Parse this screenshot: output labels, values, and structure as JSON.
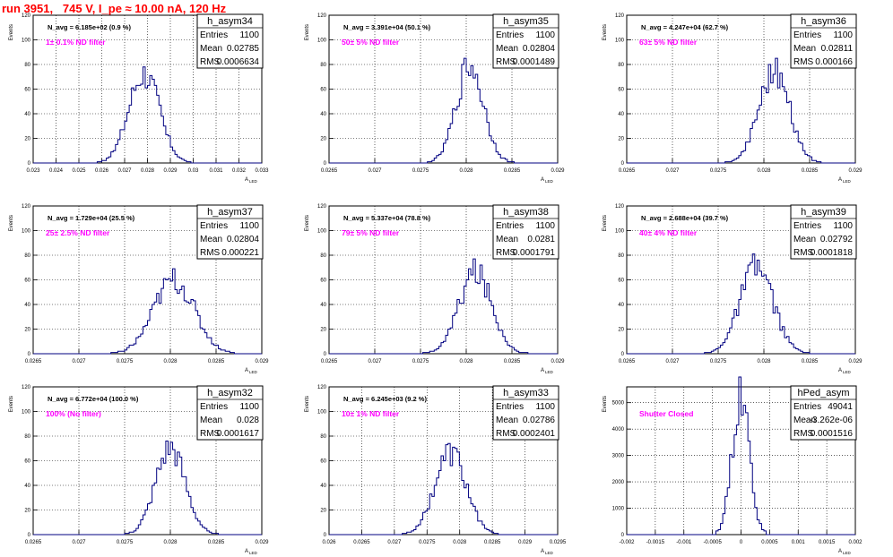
{
  "title": "run 3951,   745 V, I_pe ≈ 10.00 nA, 120 Hz",
  "colors": {
    "line": "#000080",
    "filter_label": "#ff00ff",
    "title": "#ff0000",
    "grid": "#000000"
  },
  "y_axis_label": "Events",
  "x_axis_label": "A",
  "x_axis_sub": "LED",
  "stats_labels": {
    "entries": "Entries",
    "mean": "Mean",
    "rms": "RMS"
  },
  "panels": [
    {
      "name": "h_asym34",
      "navg": "N_avg = 6.185e+02 (0.9 %)",
      "filter": "1± 0.1% ND filter",
      "entries": "1100",
      "mean": "0.02785",
      "rms": "0.0006634",
      "xticks": [
        "0.023",
        "0.024",
        "0.025",
        "0.026",
        "0.027",
        "0.028",
        "0.029",
        "0.03",
        "0.031",
        "0.032",
        "0.033"
      ],
      "yticks": [
        "0",
        "20",
        "40",
        "60",
        "80",
        "100",
        "120"
      ],
      "chart_data": {
        "type": "histogram",
        "xlim": [
          0.023,
          0.033
        ],
        "ylim": [
          0,
          120
        ],
        "mean": 0.02785,
        "rms": 0.0006634,
        "peak": 73,
        "entries": 1100
      }
    },
    {
      "name": "h_asym35",
      "navg": "N_avg = 3.391e+04 (50.1 %)",
      "filter": "50± 5% ND filter",
      "entries": "1100",
      "mean": "0.02804",
      "rms": "0.0001489",
      "xticks": [
        "0.0265",
        "0.027",
        "0.0275",
        "0.028",
        "0.0285",
        "0.029"
      ],
      "yticks": [
        "0",
        "20",
        "40",
        "60",
        "80",
        "100",
        "120"
      ],
      "chart_data": {
        "type": "histogram",
        "xlim": [
          0.0265,
          0.029
        ],
        "ylim": [
          0,
          120
        ],
        "mean": 0.02804,
        "rms": 0.0001489,
        "peak": 80,
        "entries": 1100
      }
    },
    {
      "name": "h_asym36",
      "navg": "N_avg = 4.247e+04 (62.7 %)",
      "filter": "63± 5% ND filter",
      "entries": "1100",
      "mean": "0.02811",
      "rms": "0.000166",
      "xticks": [
        "0.0265",
        "0.027",
        "0.0275",
        "0.028",
        "0.0285",
        "0.029"
      ],
      "yticks": [
        "0",
        "20",
        "40",
        "60",
        "80",
        "100",
        "120"
      ],
      "chart_data": {
        "type": "histogram",
        "xlim": [
          0.0265,
          0.029
        ],
        "ylim": [
          0,
          120
        ],
        "mean": 0.02811,
        "rms": 0.000166,
        "peak": 75,
        "entries": 1100
      }
    },
    {
      "name": "h_asym37",
      "navg": "N_avg = 1.729e+04 (25.5 %)",
      "filter": "25± 2.5% ND filter",
      "entries": "1100",
      "mean": "0.02804",
      "rms": "0.000221",
      "xticks": [
        "0.0265",
        "0.027",
        "0.0275",
        "0.028",
        "0.0285",
        "0.029"
      ],
      "yticks": [
        "0",
        "20",
        "40",
        "60",
        "80",
        "100",
        "120"
      ],
      "chart_data": {
        "type": "histogram",
        "xlim": [
          0.0265,
          0.029
        ],
        "ylim": [
          0,
          120
        ],
        "mean": 0.02804,
        "rms": 0.000221,
        "peak": 60,
        "entries": 1100
      }
    },
    {
      "name": "h_asym38",
      "navg": "N_avg = 5.337e+04 (78.8 %)",
      "filter": "79± 5% ND filter",
      "entries": "1100",
      "mean": "0.0281",
      "rms": "0.0001791",
      "xticks": [
        "0.0265",
        "0.027",
        "0.0275",
        "0.028",
        "0.0285",
        "0.029"
      ],
      "yticks": [
        "0",
        "20",
        "40",
        "60",
        "80",
        "100",
        "120"
      ],
      "chart_data": {
        "type": "histogram",
        "xlim": [
          0.0265,
          0.029
        ],
        "ylim": [
          0,
          120
        ],
        "mean": 0.0281,
        "rms": 0.0001791,
        "peak": 66,
        "entries": 1100
      }
    },
    {
      "name": "h_asym39",
      "navg": "N_avg = 2.688e+04 (39.7 %)",
      "filter": "40± 4% ND filter",
      "entries": "1100",
      "mean": "0.02792",
      "rms": "0.0001818",
      "xticks": [
        "0.0265",
        "0.027",
        "0.0275",
        "0.028",
        "0.0285",
        "0.029"
      ],
      "yticks": [
        "0",
        "20",
        "40",
        "60",
        "80",
        "100",
        "120"
      ],
      "chart_data": {
        "type": "histogram",
        "xlim": [
          0.0265,
          0.029
        ],
        "ylim": [
          0,
          120
        ],
        "mean": 0.02792,
        "rms": 0.0001818,
        "peak": 70,
        "entries": 1100
      }
    },
    {
      "name": "h_asym32",
      "navg": "N_avg = 6.772e+04 (100.0 %)",
      "filter": "100% (No filter)",
      "entries": "1100",
      "mean": "0.028",
      "rms": "0.0001617",
      "xticks": [
        "0.0265",
        "0.027",
        "0.0275",
        "0.028",
        "0.0285",
        "0.029"
      ],
      "yticks": [
        "0",
        "20",
        "40",
        "60",
        "80",
        "100",
        "120"
      ],
      "chart_data": {
        "type": "histogram",
        "xlim": [
          0.0265,
          0.029
        ],
        "ylim": [
          0,
          120
        ],
        "mean": 0.028,
        "rms": 0.0001617,
        "peak": 70,
        "entries": 1100
      }
    },
    {
      "name": "h_asym33",
      "navg": "N_avg = 6.245e+03 (9.2 %)",
      "filter": "10± 1% ND filter",
      "entries": "1100",
      "mean": "0.02786",
      "rms": "0.0002401",
      "xticks": [
        "0.026",
        "0.0265",
        "0.027",
        "0.0275",
        "0.028",
        "0.0285",
        "0.029",
        "0.0295"
      ],
      "yticks": [
        "0",
        "20",
        "40",
        "60",
        "80",
        "100",
        "120"
      ],
      "chart_data": {
        "type": "histogram",
        "xlim": [
          0.026,
          0.0295
        ],
        "ylim": [
          0,
          120
        ],
        "mean": 0.02786,
        "rms": 0.0002401,
        "peak": 66,
        "entries": 1100
      }
    },
    {
      "name": "hPed_asym",
      "navg": "",
      "filter": "Shutter Closed",
      "entries": "49041",
      "mean": "-3.262e-06",
      "rms": "0.0001516",
      "xticks": [
        "-0.002",
        "-0.0015",
        "-0.001",
        "-0.0005",
        "0",
        "0.0005",
        "0.001",
        "0.0015",
        "0.002"
      ],
      "yticks": [
        "0",
        "1000",
        "2000",
        "3000",
        "4000",
        "5000"
      ],
      "chart_data": {
        "type": "histogram",
        "xlim": [
          -0.002,
          0.002
        ],
        "ylim": [
          0,
          5600
        ],
        "mean": -3.262e-06,
        "rms": 0.0001516,
        "peak": 5150,
        "entries": 49041
      }
    }
  ]
}
